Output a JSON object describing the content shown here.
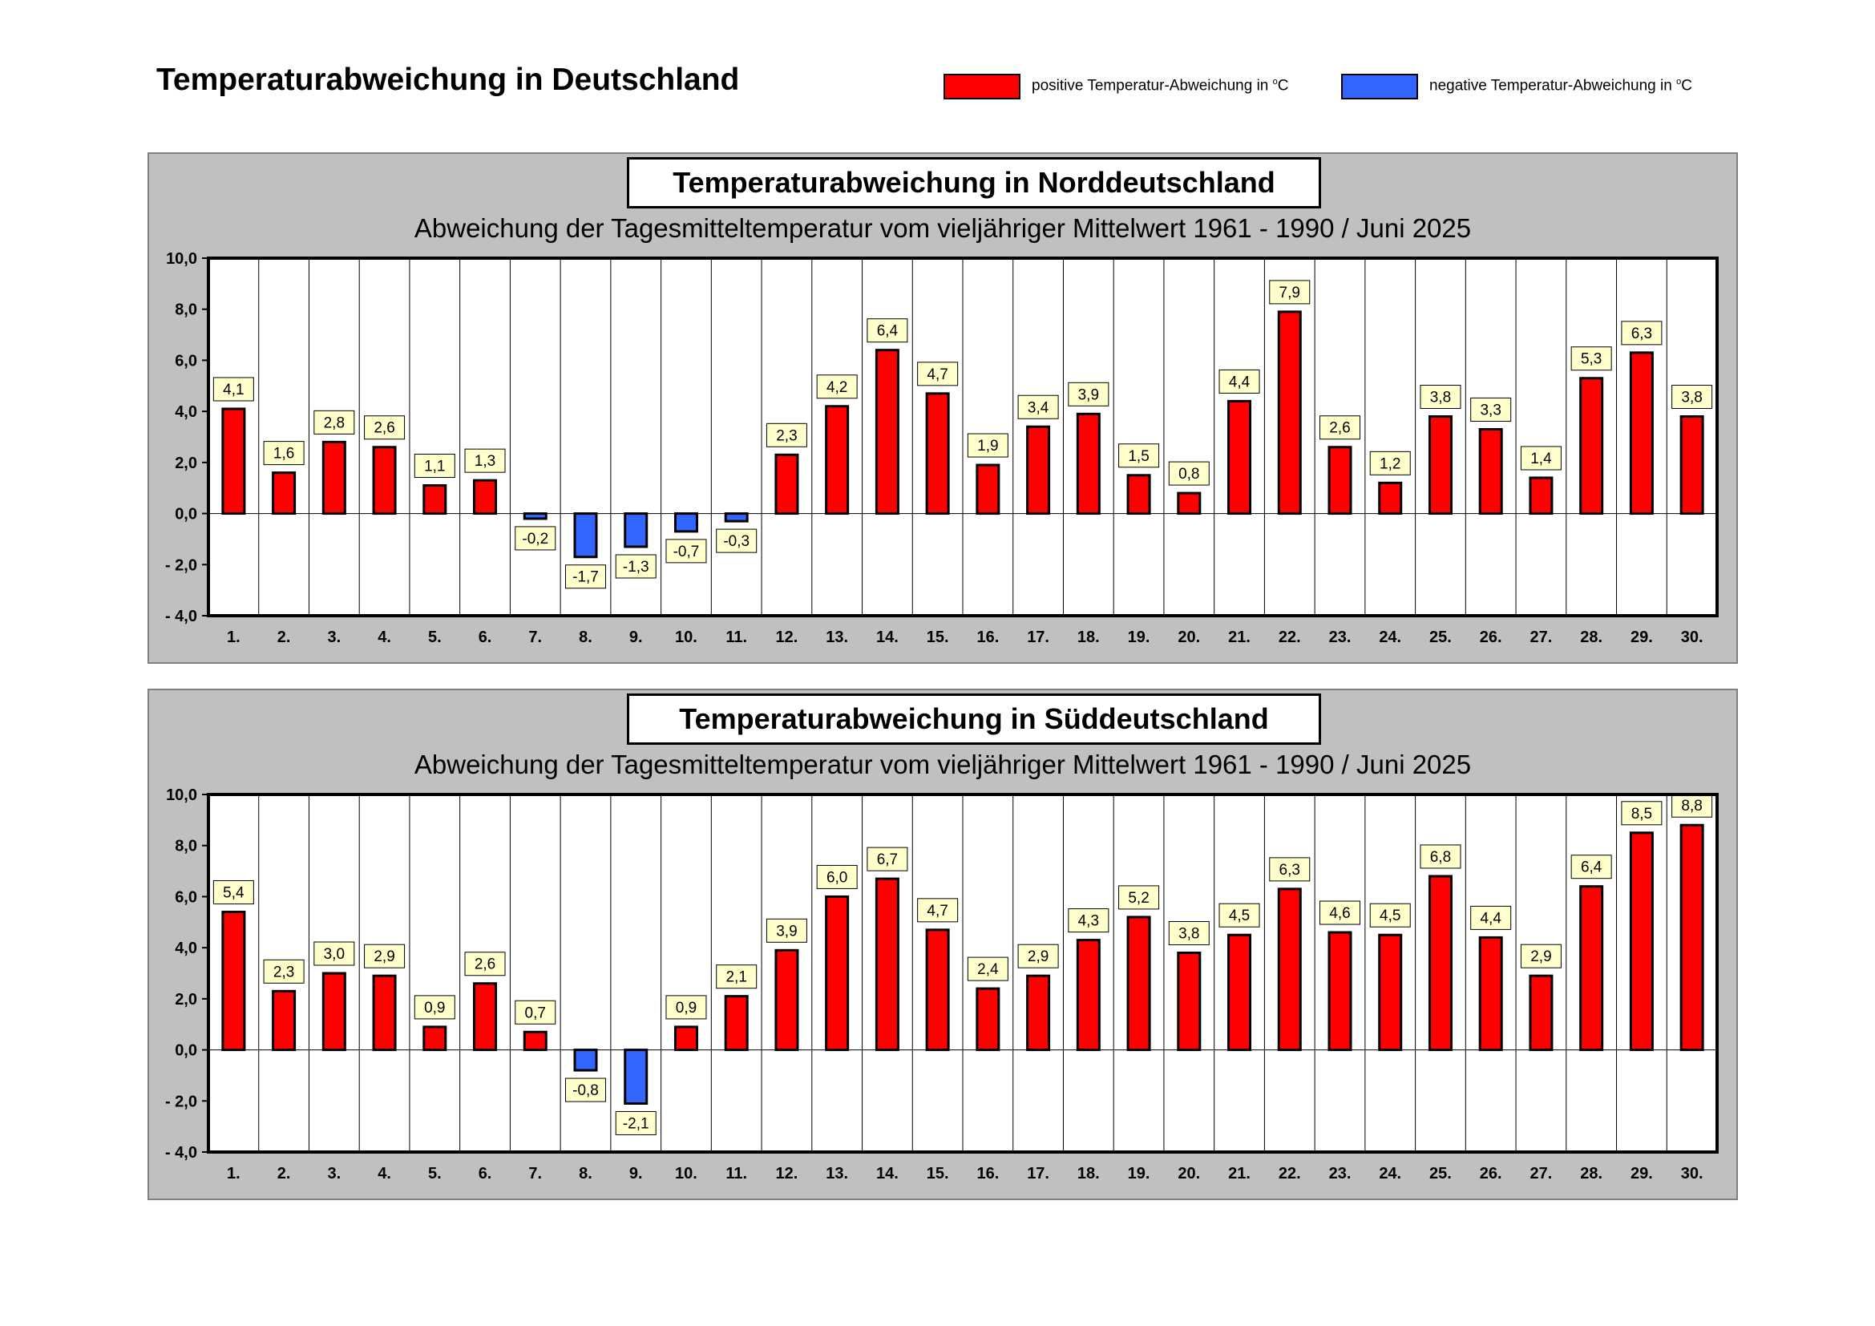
{
  "page_title": "Temperaturabweichung in Deutschland",
  "legend": {
    "positive": {
      "label": "positive Temperatur-Abweichung in ",
      "unit": "C",
      "unit_prefix": "o",
      "color": "#ff0000"
    },
    "negative": {
      "label": "negative Temperatur-Abweichung in ",
      "unit": "C",
      "unit_prefix": "o",
      "color": "#3366ff"
    }
  },
  "chart_data": [
    {
      "type": "bar",
      "title": "Temperaturabweichung in Norddeutschland",
      "subtitle": "Abweichung der Tagesmitteltemperatur vom vieljähriger Mittelwert 1961 - 1990  /  Juni 2025",
      "categories": [
        "1.",
        "2.",
        "3.",
        "4.",
        "5.",
        "6.",
        "7.",
        "8.",
        "9.",
        "10.",
        "11.",
        "12.",
        "13.",
        "14.",
        "15.",
        "16.",
        "17.",
        "18.",
        "19.",
        "20.",
        "21.",
        "22.",
        "23.",
        "24.",
        "25.",
        "26.",
        "27.",
        "28.",
        "29.",
        "30."
      ],
      "values": [
        4.1,
        1.6,
        2.8,
        2.6,
        1.1,
        1.3,
        -0.2,
        -1.7,
        -1.3,
        -0.7,
        -0.3,
        2.3,
        4.2,
        6.4,
        4.7,
        1.9,
        3.4,
        3.9,
        1.5,
        0.8,
        4.4,
        7.9,
        2.6,
        1.2,
        3.8,
        3.3,
        1.4,
        5.3,
        6.3,
        3.8
      ],
      "value_labels": [
        "4,1",
        "1,6",
        "2,8",
        "2,6",
        "1,1",
        "1,3",
        "-0,2",
        "-1,7",
        "-1,3",
        "-0,7",
        "-0,3",
        "2,3",
        "4,2",
        "6,4",
        "4,7",
        "1,9",
        "3,4",
        "3,9",
        "1,5",
        "0,8",
        "4,4",
        "7,9",
        "2,6",
        "1,2",
        "3,8",
        "3,3",
        "1,4",
        "5,3",
        "6,3",
        "3,8"
      ],
      "ylim": [
        -4,
        10
      ],
      "yticks": [
        10,
        8,
        6,
        4,
        2,
        0,
        -2,
        -4
      ],
      "ytick_labels": [
        "10,0",
        "8,0",
        "6,0",
        "4,0",
        "2,0",
        "0,0",
        "- 2,0",
        "- 4,0"
      ],
      "xlabel": "",
      "ylabel": ""
    },
    {
      "type": "bar",
      "title": "Temperaturabweichung in Süddeutschland",
      "subtitle": "Abweichung der Tagesmitteltemperatur vom vieljähriger Mittelwert 1961 - 1990  /  Juni 2025",
      "categories": [
        "1.",
        "2.",
        "3.",
        "4.",
        "5.",
        "6.",
        "7.",
        "8.",
        "9.",
        "10.",
        "11.",
        "12.",
        "13.",
        "14.",
        "15.",
        "16.",
        "17.",
        "18.",
        "19.",
        "20.",
        "21.",
        "22.",
        "23.",
        "24.",
        "25.",
        "26.",
        "27.",
        "28.",
        "29.",
        "30."
      ],
      "values": [
        5.4,
        2.3,
        3.0,
        2.9,
        0.9,
        2.6,
        0.7,
        -0.8,
        -2.1,
        0.9,
        2.1,
        3.9,
        6.0,
        6.7,
        4.7,
        2.4,
        2.9,
        4.3,
        5.2,
        3.8,
        4.5,
        6.3,
        4.6,
        4.5,
        6.8,
        4.4,
        2.9,
        6.4,
        8.5,
        8.8
      ],
      "value_labels": [
        "5,4",
        "2,3",
        "3,0",
        "2,9",
        "0,9",
        "2,6",
        "0,7",
        "-0,8",
        "-2,1",
        "0,9",
        "2,1",
        "3,9",
        "6,0",
        "6,7",
        "4,7",
        "2,4",
        "2,9",
        "4,3",
        "5,2",
        "3,8",
        "4,5",
        "6,3",
        "4,6",
        "4,5",
        "6,8",
        "4,4",
        "2,9",
        "6,4",
        "8,5",
        "8,8"
      ],
      "ylim": [
        -4,
        10
      ],
      "yticks": [
        10,
        8,
        6,
        4,
        2,
        0,
        -2,
        -4
      ],
      "ytick_labels": [
        "10,0",
        "8,0",
        "6,0",
        "4,0",
        "2,0",
        "0,0",
        "- 2,0",
        "- 4,0"
      ],
      "xlabel": "",
      "ylabel": ""
    }
  ]
}
